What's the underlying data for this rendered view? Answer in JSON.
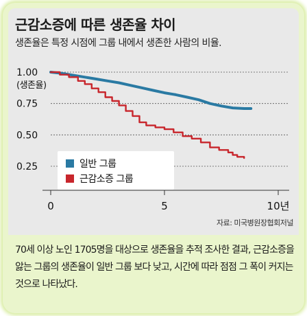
{
  "title": "근감소증에 따른 생존율 차이",
  "subtitle": "생존율은 특정 시점에 그룹 내에서 생존한 사람의 비율.",
  "source": "자료: 미국병원장협회저널",
  "caption": "70세 이상 노인 1705명을 대상으로 생존율을 추적 조사한 결과, 근감소증을 앓는 그룹의 생존율이 일반 그룹 보다 낮고, 시간에 따라 점점 그 폭이 커지는 것으로 나타났다.",
  "colors": {
    "normal": "#2a7aa3",
    "sarcopenia": "#c8262c",
    "panel": "#e9e9e9",
    "frame": "#eaf5cc"
  },
  "chart_data": {
    "type": "line",
    "title": "근감소증에 따른 생존율 차이",
    "ylabel": "(생존율)",
    "xlabel": "",
    "x_tick_labels": [
      "0",
      "5",
      "10년"
    ],
    "y_tick_labels": [
      "1.00",
      "0.75",
      "0.50",
      "0.25"
    ],
    "xlim": [
      0,
      10
    ],
    "ylim": [
      0.2,
      1.0
    ],
    "grid": "horizontal dashed",
    "legend_position": "bottom-left",
    "series": [
      {
        "name": "일반 그룹",
        "color": "#2a7aa3",
        "step": false,
        "points": [
          [
            0,
            1.0
          ],
          [
            0.5,
            0.99
          ],
          [
            1,
            0.975
          ],
          [
            1.5,
            0.96
          ],
          [
            2,
            0.945
          ],
          [
            2.5,
            0.93
          ],
          [
            3,
            0.915
          ],
          [
            3.5,
            0.895
          ],
          [
            4,
            0.875
          ],
          [
            4.5,
            0.855
          ],
          [
            5,
            0.835
          ],
          [
            5.5,
            0.82
          ],
          [
            6,
            0.8
          ],
          [
            6.5,
            0.78
          ],
          [
            7,
            0.75
          ],
          [
            7.5,
            0.73
          ],
          [
            8,
            0.715
          ],
          [
            8.5,
            0.71
          ],
          [
            8.8,
            0.71
          ]
        ]
      },
      {
        "name": "근감소증 그룹",
        "color": "#c8262c",
        "step": true,
        "points": [
          [
            0,
            1.0
          ],
          [
            0.4,
            0.98
          ],
          [
            0.8,
            0.96
          ],
          [
            1.2,
            0.93
          ],
          [
            1.5,
            0.905
          ],
          [
            1.8,
            0.87
          ],
          [
            2.1,
            0.84
          ],
          [
            2.4,
            0.8
          ],
          [
            2.7,
            0.77
          ],
          [
            3,
            0.735
          ],
          [
            3.3,
            0.69
          ],
          [
            3.6,
            0.65
          ],
          [
            3.9,
            0.6
          ],
          [
            4.2,
            0.575
          ],
          [
            4.6,
            0.56
          ],
          [
            5,
            0.545
          ],
          [
            5.4,
            0.52
          ],
          [
            5.8,
            0.49
          ],
          [
            6.2,
            0.47
          ],
          [
            6.6,
            0.44
          ],
          [
            7,
            0.4
          ],
          [
            7.4,
            0.38
          ],
          [
            7.8,
            0.36
          ],
          [
            8,
            0.34
          ],
          [
            8.2,
            0.325
          ],
          [
            8.5,
            0.315
          ]
        ]
      }
    ]
  }
}
